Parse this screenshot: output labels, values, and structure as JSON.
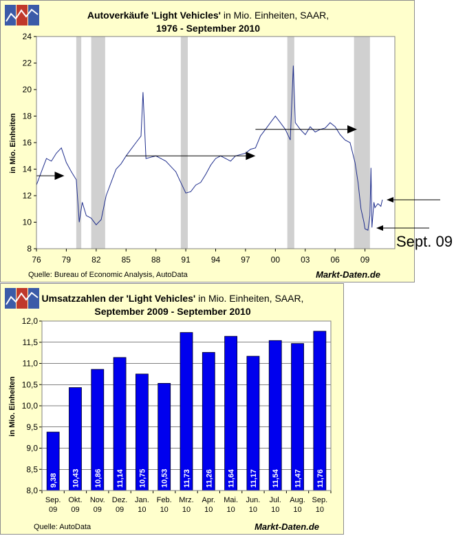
{
  "chart_data": [
    {
      "type": "line",
      "title_bold": "Autoverkäufe 'Light Vehicles'",
      "title_rest": " in Mio. Einheiten, SAAR,",
      "subtitle": "1976 - September 2010",
      "ylabel": "in Mio. Einheiten",
      "xlabel": "",
      "ylim": [
        8,
        24
      ],
      "yticks": [
        8,
        10,
        12,
        14,
        16,
        18,
        20,
        22,
        24
      ],
      "xticks": [
        "76",
        "79",
        "82",
        "85",
        "88",
        "91",
        "94",
        "97",
        "00",
        "03",
        "06",
        "09"
      ],
      "xrange_years": [
        1976,
        2012
      ],
      "source": "Quelle: Bureau of Economic Analysis, AutoData",
      "brand": "Markt-Daten.de",
      "annotation": "Sept. 09",
      "recessions": [
        [
          1980.0,
          1980.5
        ],
        [
          1981.5,
          1982.9
        ],
        [
          1990.5,
          1991.2
        ],
        [
          2001.2,
          2001.9
        ],
        [
          2007.9,
          2009.5
        ]
      ],
      "trend_arrows": [
        {
          "x1": 1976.0,
          "x2": 1978.8,
          "y": 13.5
        },
        {
          "x1": 1985.0,
          "x2": 1998.0,
          "y": 15.0
        },
        {
          "x1": 1998.0,
          "x2": 2008.2,
          "y": 17.0
        }
      ],
      "series": [
        {
          "name": "Light Vehicles SAAR",
          "color": "#1e2d8c",
          "x": [
            1976,
            1976.5,
            1977,
            1977.5,
            1978,
            1978.5,
            1979,
            1979.5,
            1980,
            1980.3,
            1980.6,
            1981,
            1981.5,
            1982,
            1982.5,
            1983,
            1983.5,
            1984,
            1984.5,
            1985,
            1985.5,
            1986,
            1986.5,
            1986.7,
            1987,
            1987.5,
            1988,
            1988.5,
            1989,
            1989.5,
            1990,
            1990.5,
            1991,
            1991.5,
            1992,
            1992.5,
            1993,
            1993.5,
            1994,
            1994.5,
            1995,
            1995.5,
            1996,
            1996.5,
            1997,
            1997.5,
            1998,
            1998.5,
            1999,
            1999.5,
            2000,
            2000.5,
            2001,
            2001.5,
            2001.8,
            2002,
            2002.5,
            2003,
            2003.5,
            2004,
            2004.5,
            2005,
            2005.5,
            2006,
            2006.5,
            2007,
            2007.5,
            2008,
            2008.3,
            2008.6,
            2008.9,
            2009,
            2009.3,
            2009.5,
            2009.6,
            2009.7,
            2009.9,
            2010,
            2010.3,
            2010.6,
            2010.75
          ],
          "y": [
            12.8,
            13.8,
            14.8,
            14.6,
            15.2,
            15.6,
            14.5,
            13.8,
            13.2,
            10.0,
            11.5,
            10.5,
            10.3,
            9.8,
            10.2,
            12.0,
            13.0,
            14.0,
            14.4,
            15.0,
            15.5,
            16.0,
            16.5,
            19.8,
            14.8,
            14.9,
            15.0,
            14.8,
            14.6,
            14.2,
            13.8,
            13.0,
            12.2,
            12.3,
            12.8,
            13.0,
            13.6,
            14.3,
            14.8,
            15.0,
            14.8,
            14.6,
            15.0,
            15.1,
            15.2,
            15.5,
            15.6,
            16.5,
            17.0,
            17.5,
            18.0,
            17.5,
            17.0,
            16.2,
            21.8,
            17.5,
            17.0,
            16.6,
            17.2,
            16.8,
            17.0,
            17.1,
            17.5,
            17.2,
            16.6,
            16.2,
            16.0,
            14.5,
            13.0,
            11.0,
            10.0,
            9.5,
            9.4,
            10.5,
            14.1,
            9.6,
            11.5,
            11.1,
            11.4,
            11.2,
            11.7
          ]
        }
      ]
    },
    {
      "type": "bar",
      "title_bold": "Umsatzzahlen der 'Light Vehicles'",
      "title_rest": " in Mio. Einheiten, SAAR,",
      "subtitle": "September 2009 - September 2010",
      "ylabel": "in Mio. Einheiten",
      "xlabel": "",
      "ylim": [
        8.0,
        12.0
      ],
      "yticks": [
        "8,0",
        "8,5",
        "9,0",
        "9,5",
        "10,0",
        "10,5",
        "11,0",
        "11,5",
        "12,0"
      ],
      "categories": [
        [
          "Sep.",
          "09"
        ],
        [
          "Okt.",
          "09"
        ],
        [
          "Nov.",
          "09"
        ],
        [
          "Dez.",
          "09"
        ],
        [
          "Jan.",
          "10"
        ],
        [
          "Feb.",
          "10"
        ],
        [
          "Mrz.",
          "10"
        ],
        [
          "Apr.",
          "10"
        ],
        [
          "Mai.",
          "10"
        ],
        [
          "Jun.",
          "10"
        ],
        [
          "Jul.",
          "10"
        ],
        [
          "Aug.",
          "10"
        ],
        [
          "Sep.",
          "10"
        ]
      ],
      "values": [
        9.38,
        10.43,
        10.86,
        11.14,
        10.75,
        10.53,
        11.73,
        11.26,
        11.64,
        11.17,
        11.54,
        11.47,
        11.76
      ],
      "value_labels": [
        "9,38",
        "10,43",
        "10,86",
        "11,14",
        "10,75",
        "10,53",
        "11,73",
        "11,26",
        "11,64",
        "11,17",
        "11,54",
        "11,47",
        "11,76"
      ],
      "bar_color": "#0000ee",
      "source": "Quelle: AutoData",
      "brand": "Markt-Daten.de"
    }
  ]
}
